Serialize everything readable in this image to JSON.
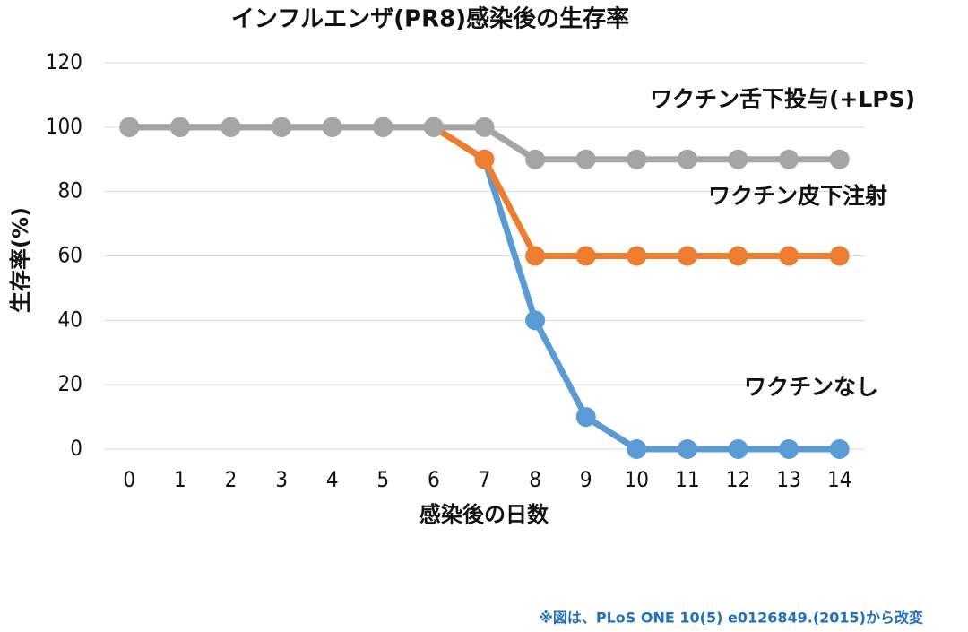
{
  "chart_data": {
    "type": "line",
    "title": "インフルエンザ(PR8)感染後の生存率",
    "x_label": "感染後の日数",
    "y_label": "生存率(%)",
    "x": [
      0,
      1,
      2,
      3,
      4,
      5,
      6,
      7,
      8,
      9,
      10,
      11,
      12,
      13,
      14
    ],
    "series": [
      {
        "name": "ワクチンなし",
        "color": "#5b9bd5",
        "values": [
          100,
          100,
          100,
          100,
          100,
          100,
          100,
          90,
          40,
          10,
          0,
          0,
          0,
          0,
          0
        ]
      },
      {
        "name": "ワクチン皮下注射",
        "color": "#ed7d31",
        "values": [
          100,
          100,
          100,
          100,
          100,
          100,
          100,
          90,
          60,
          60,
          60,
          60,
          60,
          60,
          60
        ]
      },
      {
        "name": "ワクチン舌下投与(+LPS)",
        "color": "#a5a5a5",
        "values": [
          100,
          100,
          100,
          100,
          100,
          100,
          100,
          100,
          90,
          90,
          90,
          90,
          90,
          90,
          90
        ]
      }
    ],
    "xlim": [
      -0.5,
      14.5
    ],
    "xticks": [
      0,
      1,
      2,
      3,
      4,
      5,
      6,
      7,
      8,
      9,
      10,
      11,
      12,
      13,
      14
    ],
    "ylim": [
      0,
      120
    ],
    "yticks": [
      0,
      20,
      40,
      60,
      80,
      100,
      120
    ],
    "grid": true,
    "footnote": "※図は、PLoS ONE 10(5) e0126849.(2015)から改変"
  }
}
